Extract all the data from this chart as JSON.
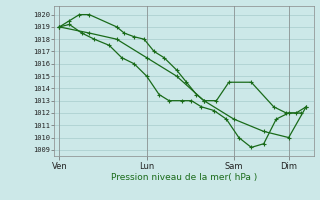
{
  "background_color": "#cce8e8",
  "grid_color": "#a8cccc",
  "line_color": "#1a6b1a",
  "marker_color": "#1a6b1a",
  "ylabel_ticks": [
    1009,
    1010,
    1011,
    1012,
    1013,
    1014,
    1015,
    1016,
    1017,
    1018,
    1019,
    1020
  ],
  "ylim": [
    1008.5,
    1020.7
  ],
  "xlabel": "Pression niveau de la mer( hPa )",
  "xtick_labels": [
    "Ven",
    "Lun",
    "Sam",
    "Dim"
  ],
  "xtick_positions": [
    0.0,
    0.35,
    0.7,
    0.92
  ],
  "series1_x": [
    0.0,
    0.04,
    0.08,
    0.12,
    0.23,
    0.26,
    0.3,
    0.34,
    0.38,
    0.42,
    0.47,
    0.51,
    0.55,
    0.58,
    0.63,
    0.68,
    0.77,
    0.86,
    0.91,
    0.95,
    0.99
  ],
  "series1_y": [
    1019,
    1019.5,
    1020,
    1020,
    1019,
    1018.5,
    1018.2,
    1018,
    1017,
    1016.5,
    1015.5,
    1014.5,
    1013.5,
    1013,
    1013,
    1014.5,
    1014.5,
    1012.5,
    1012,
    1012,
    1012.5
  ],
  "series2_x": [
    0.0,
    0.04,
    0.09,
    0.14,
    0.2,
    0.25,
    0.3,
    0.35,
    0.4,
    0.44,
    0.49,
    0.53,
    0.57,
    0.62,
    0.67,
    0.72,
    0.77,
    0.82,
    0.87,
    0.92,
    0.97
  ],
  "series2_y": [
    1019,
    1019.2,
    1018.5,
    1018,
    1017.5,
    1016.5,
    1016,
    1015,
    1013.5,
    1013,
    1013,
    1013,
    1012.5,
    1012.2,
    1011.5,
    1010,
    1009.2,
    1009.5,
    1011.5,
    1012,
    1012
  ],
  "series3_x": [
    0.0,
    0.12,
    0.23,
    0.35,
    0.47,
    0.58,
    0.7,
    0.82,
    0.92,
    0.99
  ],
  "series3_y": [
    1019,
    1018.5,
    1018,
    1016.5,
    1015,
    1013,
    1011.5,
    1010.5,
    1010,
    1012.5
  ]
}
